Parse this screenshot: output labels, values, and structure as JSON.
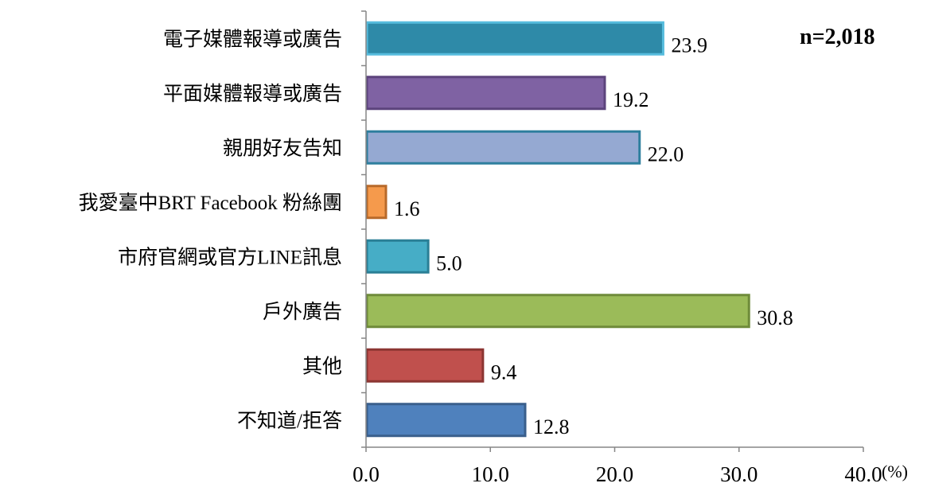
{
  "chart_data": {
    "type": "bar",
    "orientation": "horizontal",
    "categories": [
      "電子媒體報導或廣告",
      "平面媒體報導或廣告",
      "親朋好友告知",
      "我愛臺中BRT Facebook 粉絲團",
      "市府官網或官方LINE訊息",
      "戶外廣告",
      "其他",
      "不知道/拒答"
    ],
    "values": [
      23.9,
      19.2,
      22.0,
      1.6,
      5.0,
      30.8,
      9.4,
      12.8
    ],
    "value_labels": [
      "23.9",
      "19.2",
      "22.0",
      "1.6",
      "5.0",
      "30.8",
      "9.4",
      "12.8"
    ],
    "colors": [
      "#2E8AA8",
      "#7F62A3",
      "#95A9D2",
      "#F59A4C",
      "#46ADC6",
      "#9BBB59",
      "#C0504D",
      "#4F81BD"
    ],
    "border_colors": [
      "#56BCDD",
      "#5D447D",
      "#2E7F9E",
      "#B86A2A",
      "#2A7F96",
      "#6F8B3A",
      "#8C3532",
      "#3A5F8C"
    ],
    "xlim": [
      0,
      40
    ],
    "xticks": [
      "0.0",
      "10.0",
      "20.0",
      "30.0",
      "40.0"
    ],
    "unit": "(%)",
    "annotation": "n=2,018",
    "grid": false
  }
}
